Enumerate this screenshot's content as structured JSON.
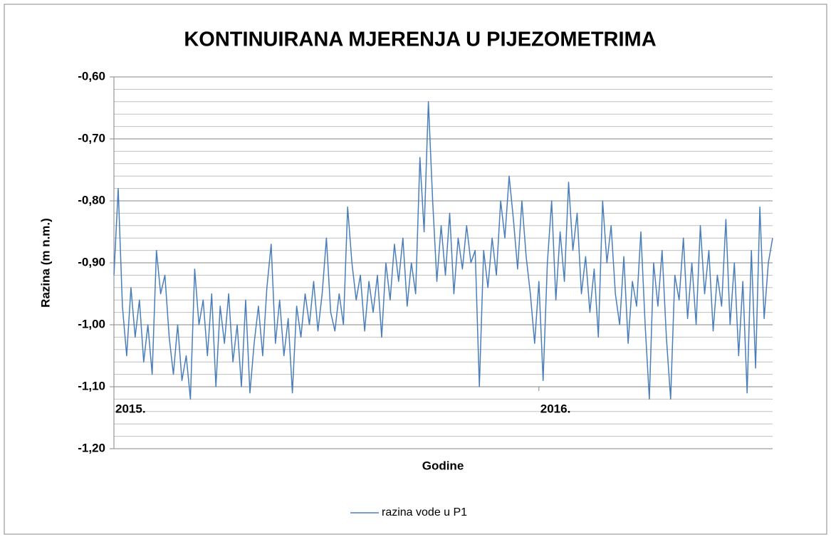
{
  "chart_data": {
    "type": "line",
    "title": "KONTINUIRANA MJERENJA U PIJEZOMETRIMA",
    "y_label": "Razina (m n.m.)",
    "x_label": "Godine",
    "categories": [
      "2015.",
      null,
      null,
      null,
      null,
      null,
      null,
      null,
      null,
      null,
      null,
      null,
      null,
      null,
      null,
      null,
      null,
      null,
      null,
      null,
      null,
      null,
      null,
      null,
      null,
      null,
      null,
      null,
      null,
      null,
      null,
      null,
      null,
      null,
      null,
      null,
      null,
      null,
      null,
      null,
      null,
      null,
      null,
      null,
      null,
      null,
      null,
      null,
      null,
      null,
      null,
      null,
      null,
      null,
      null,
      null,
      null,
      null,
      null,
      null,
      null,
      null,
      null,
      null,
      null,
      null,
      null,
      null,
      null,
      null,
      null,
      null,
      null,
      null,
      null,
      null,
      null,
      null,
      null,
      null,
      null,
      null,
      null,
      null,
      null,
      null,
      null,
      null,
      null,
      null,
      null,
      null,
      null,
      null,
      null,
      null,
      null,
      null,
      null,
      null,
      "2016.",
      null,
      null,
      null,
      null,
      null,
      null,
      null,
      null,
      null,
      null,
      null,
      null,
      null,
      null,
      null,
      null,
      null,
      null,
      null,
      null,
      null,
      null,
      null,
      null,
      null,
      null,
      null,
      null,
      null,
      null,
      null,
      null,
      null,
      null,
      null,
      null,
      null,
      null,
      null,
      null,
      null,
      null,
      null,
      null,
      null,
      null,
      null,
      null,
      null,
      null,
      null,
      null,
      null,
      null,
      null
    ],
    "series": [
      {
        "name": "razina vode u P1",
        "color": "#4a7ebb",
        "values": [
          -0.92,
          -0.78,
          -0.97,
          -1.05,
          -0.94,
          -1.02,
          -0.96,
          -1.06,
          -1.0,
          -1.08,
          -0.88,
          -0.95,
          -0.92,
          -1.02,
          -1.08,
          -1.0,
          -1.09,
          -1.05,
          -1.12,
          -0.91,
          -1.0,
          -0.96,
          -1.05,
          -0.95,
          -1.1,
          -0.97,
          -1.03,
          -0.95,
          -1.06,
          -1.0,
          -1.1,
          -0.96,
          -1.11,
          -1.03,
          -0.97,
          -1.05,
          -0.94,
          -0.87,
          -1.03,
          -0.96,
          -1.05,
          -0.99,
          -1.11,
          -0.97,
          -1.02,
          -0.95,
          -1.0,
          -0.93,
          -1.01,
          -0.95,
          -0.86,
          -0.98,
          -1.01,
          -0.95,
          -1.0,
          -0.81,
          -0.9,
          -0.96,
          -0.92,
          -1.01,
          -0.93,
          -0.98,
          -0.92,
          -1.02,
          -0.9,
          -0.96,
          -0.87,
          -0.93,
          -0.86,
          -0.97,
          -0.9,
          -0.95,
          -0.73,
          -0.85,
          -0.64,
          -0.8,
          -0.93,
          -0.84,
          -0.92,
          -0.82,
          -0.95,
          -0.86,
          -0.91,
          -0.84,
          -0.9,
          -0.88,
          -1.1,
          -0.88,
          -0.94,
          -0.86,
          -0.92,
          -0.8,
          -0.86,
          -0.76,
          -0.83,
          -0.91,
          -0.8,
          -0.89,
          -0.95,
          -1.03,
          -0.93,
          -1.09,
          -0.9,
          -0.8,
          -0.96,
          -0.85,
          -0.93,
          -0.77,
          -0.88,
          -0.82,
          -0.95,
          -0.89,
          -0.98,
          -0.91,
          -1.02,
          -0.8,
          -0.9,
          -0.84,
          -0.95,
          -1.0,
          -0.89,
          -1.03,
          -0.93,
          -0.97,
          -0.85,
          -1.0,
          -1.12,
          -0.9,
          -0.97,
          -0.88,
          -1.02,
          -1.12,
          -0.92,
          -0.96,
          -0.86,
          -0.99,
          -0.9,
          -1.0,
          -0.84,
          -0.95,
          -0.88,
          -1.01,
          -0.92,
          -0.97,
          -0.83,
          -1.0,
          -0.9,
          -1.05,
          -0.93,
          -1.11,
          -0.88,
          -1.07,
          -0.81,
          -0.99,
          -0.9,
          -0.86
        ]
      }
    ],
    "ylim": [
      -1.2,
      -0.6
    ],
    "yticks": [
      {
        "value": -1.2,
        "label": "-1,20"
      },
      {
        "value": -1.1,
        "label": "-1,10"
      },
      {
        "value": -1.0,
        "label": "-1,00"
      },
      {
        "value": -0.9,
        "label": "-0,90"
      },
      {
        "value": -0.8,
        "label": "-0,80"
      },
      {
        "value": -0.7,
        "label": "-0,70"
      },
      {
        "value": -0.6,
        "label": "-0,60"
      }
    ],
    "minor_grid_step": 0.02,
    "x_axis_at": -1.1,
    "grid": true,
    "legend": "bottom"
  }
}
